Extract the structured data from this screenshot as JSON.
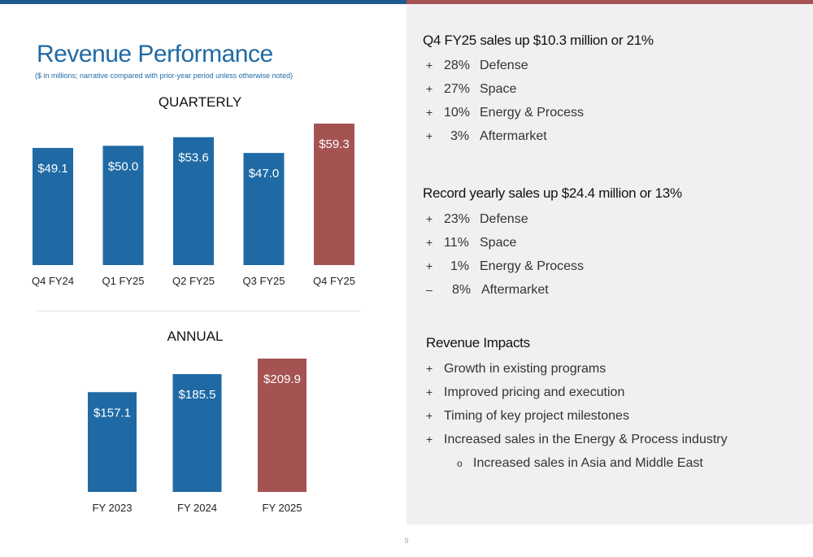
{
  "title": "Revenue Performance",
  "subtitle": "($ in millions; narrative compared with prior-year period unless otherwise noted)",
  "page_number": "9",
  "colors": {
    "blue": "#1f6aa5",
    "red": "#a55252",
    "panel": "#f0f0f0"
  },
  "chart_data": [
    {
      "type": "bar",
      "title": "QUARTERLY",
      "categories": [
        "Q4 FY24",
        "Q1 FY25",
        "Q2 FY25",
        "Q3 FY25",
        "Q4 FY25"
      ],
      "values": [
        49.1,
        50.0,
        53.6,
        47.0,
        59.3
      ],
      "labels": [
        "$49.1",
        "$50.0",
        "$53.6",
        "$47.0",
        "$59.3"
      ],
      "highlight_index": 4,
      "xlabel": "",
      "ylabel": "",
      "grid": false
    },
    {
      "type": "bar",
      "title": "ANNUAL",
      "categories": [
        "FY 2023",
        "FY 2024",
        "FY 2025"
      ],
      "values": [
        157.1,
        185.5,
        209.9
      ],
      "labels": [
        "$157.1",
        "$185.5",
        "$209.9"
      ],
      "highlight_index": 2,
      "xlabel": "",
      "ylabel": "",
      "grid": false
    }
  ],
  "sections": {
    "q4": {
      "heading": "Q4 FY25 sales up $10.3 million or 21%",
      "items": [
        {
          "sign": "+",
          "pct": "28%",
          "label": "Defense"
        },
        {
          "sign": "+",
          "pct": "27%",
          "label": "Space"
        },
        {
          "sign": "+",
          "pct": "10%",
          "label": "Energy & Process"
        },
        {
          "sign": "+",
          "pct": "3%",
          "label": "Aftermarket"
        }
      ]
    },
    "yearly": {
      "heading": "Record yearly sales up $24.4 million or 13%",
      "items": [
        {
          "sign": "+",
          "pct": "23%",
          "label": "Defense"
        },
        {
          "sign": "+",
          "pct": "11%",
          "label": "Space"
        },
        {
          "sign": "+",
          "pct": "1%",
          "label": "Energy & Process"
        },
        {
          "sign": "–",
          "pct": "8%",
          "label": "Aftermarket"
        }
      ]
    },
    "impacts": {
      "heading": "Revenue Impacts",
      "items": [
        {
          "sign": "+",
          "label": "Growth in existing programs"
        },
        {
          "sign": "+",
          "label": "Improved pricing and execution"
        },
        {
          "sign": "+",
          "label": "Timing of key project milestones"
        },
        {
          "sign": "+",
          "label": "Increased sales in the Energy & Process industry"
        }
      ],
      "sub_item": {
        "sign": "o",
        "label": "Increased sales in Asia and Middle East"
      }
    }
  }
}
